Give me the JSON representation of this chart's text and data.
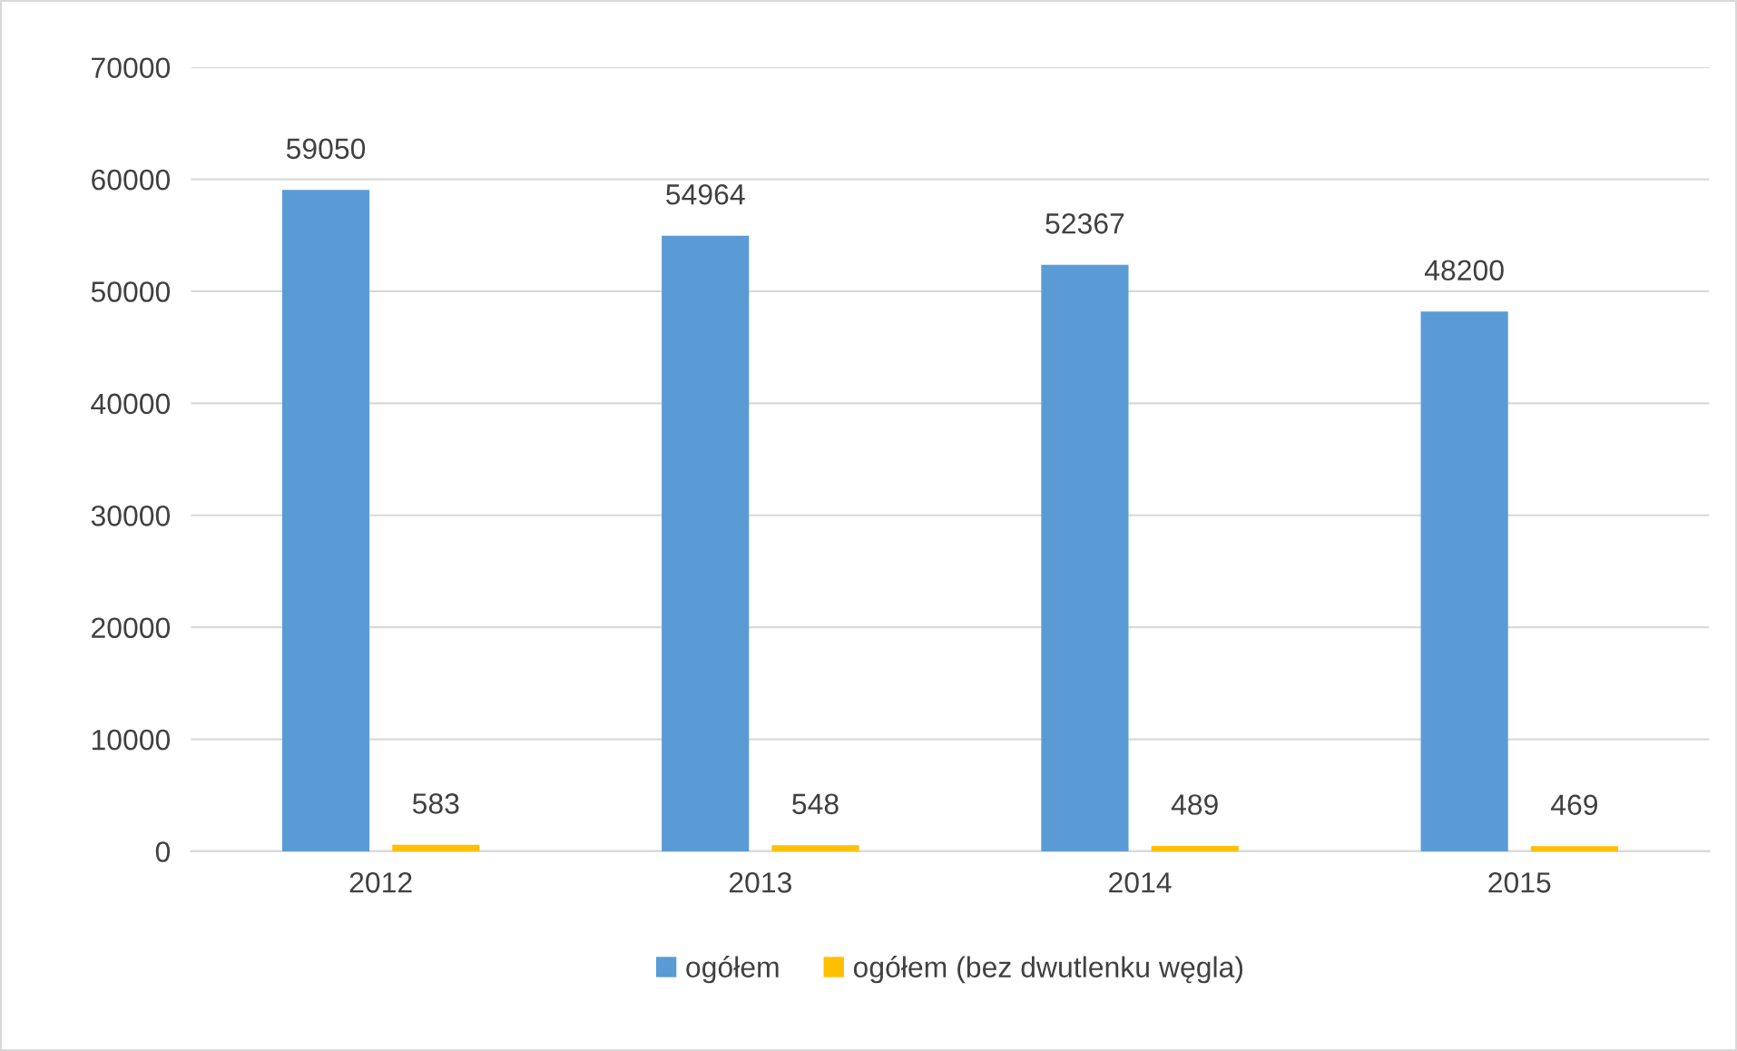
{
  "chart_data": {
    "type": "bar",
    "categories": [
      "2012",
      "2013",
      "2014",
      "2015"
    ],
    "series": [
      {
        "name": "ogółem",
        "color": "#5b9bd5",
        "values": [
          59050,
          54964,
          52367,
          48200
        ]
      },
      {
        "name": "ogółem (bez dwutlenku węgla)",
        "color": "#ffc000",
        "values": [
          583,
          548,
          489,
          469
        ]
      }
    ],
    "ylim": [
      0,
      70000
    ],
    "yticks": [
      0,
      10000,
      20000,
      30000,
      40000,
      50000,
      60000,
      70000
    ],
    "grid": "y",
    "legend": "bottom",
    "data_labels": true
  }
}
